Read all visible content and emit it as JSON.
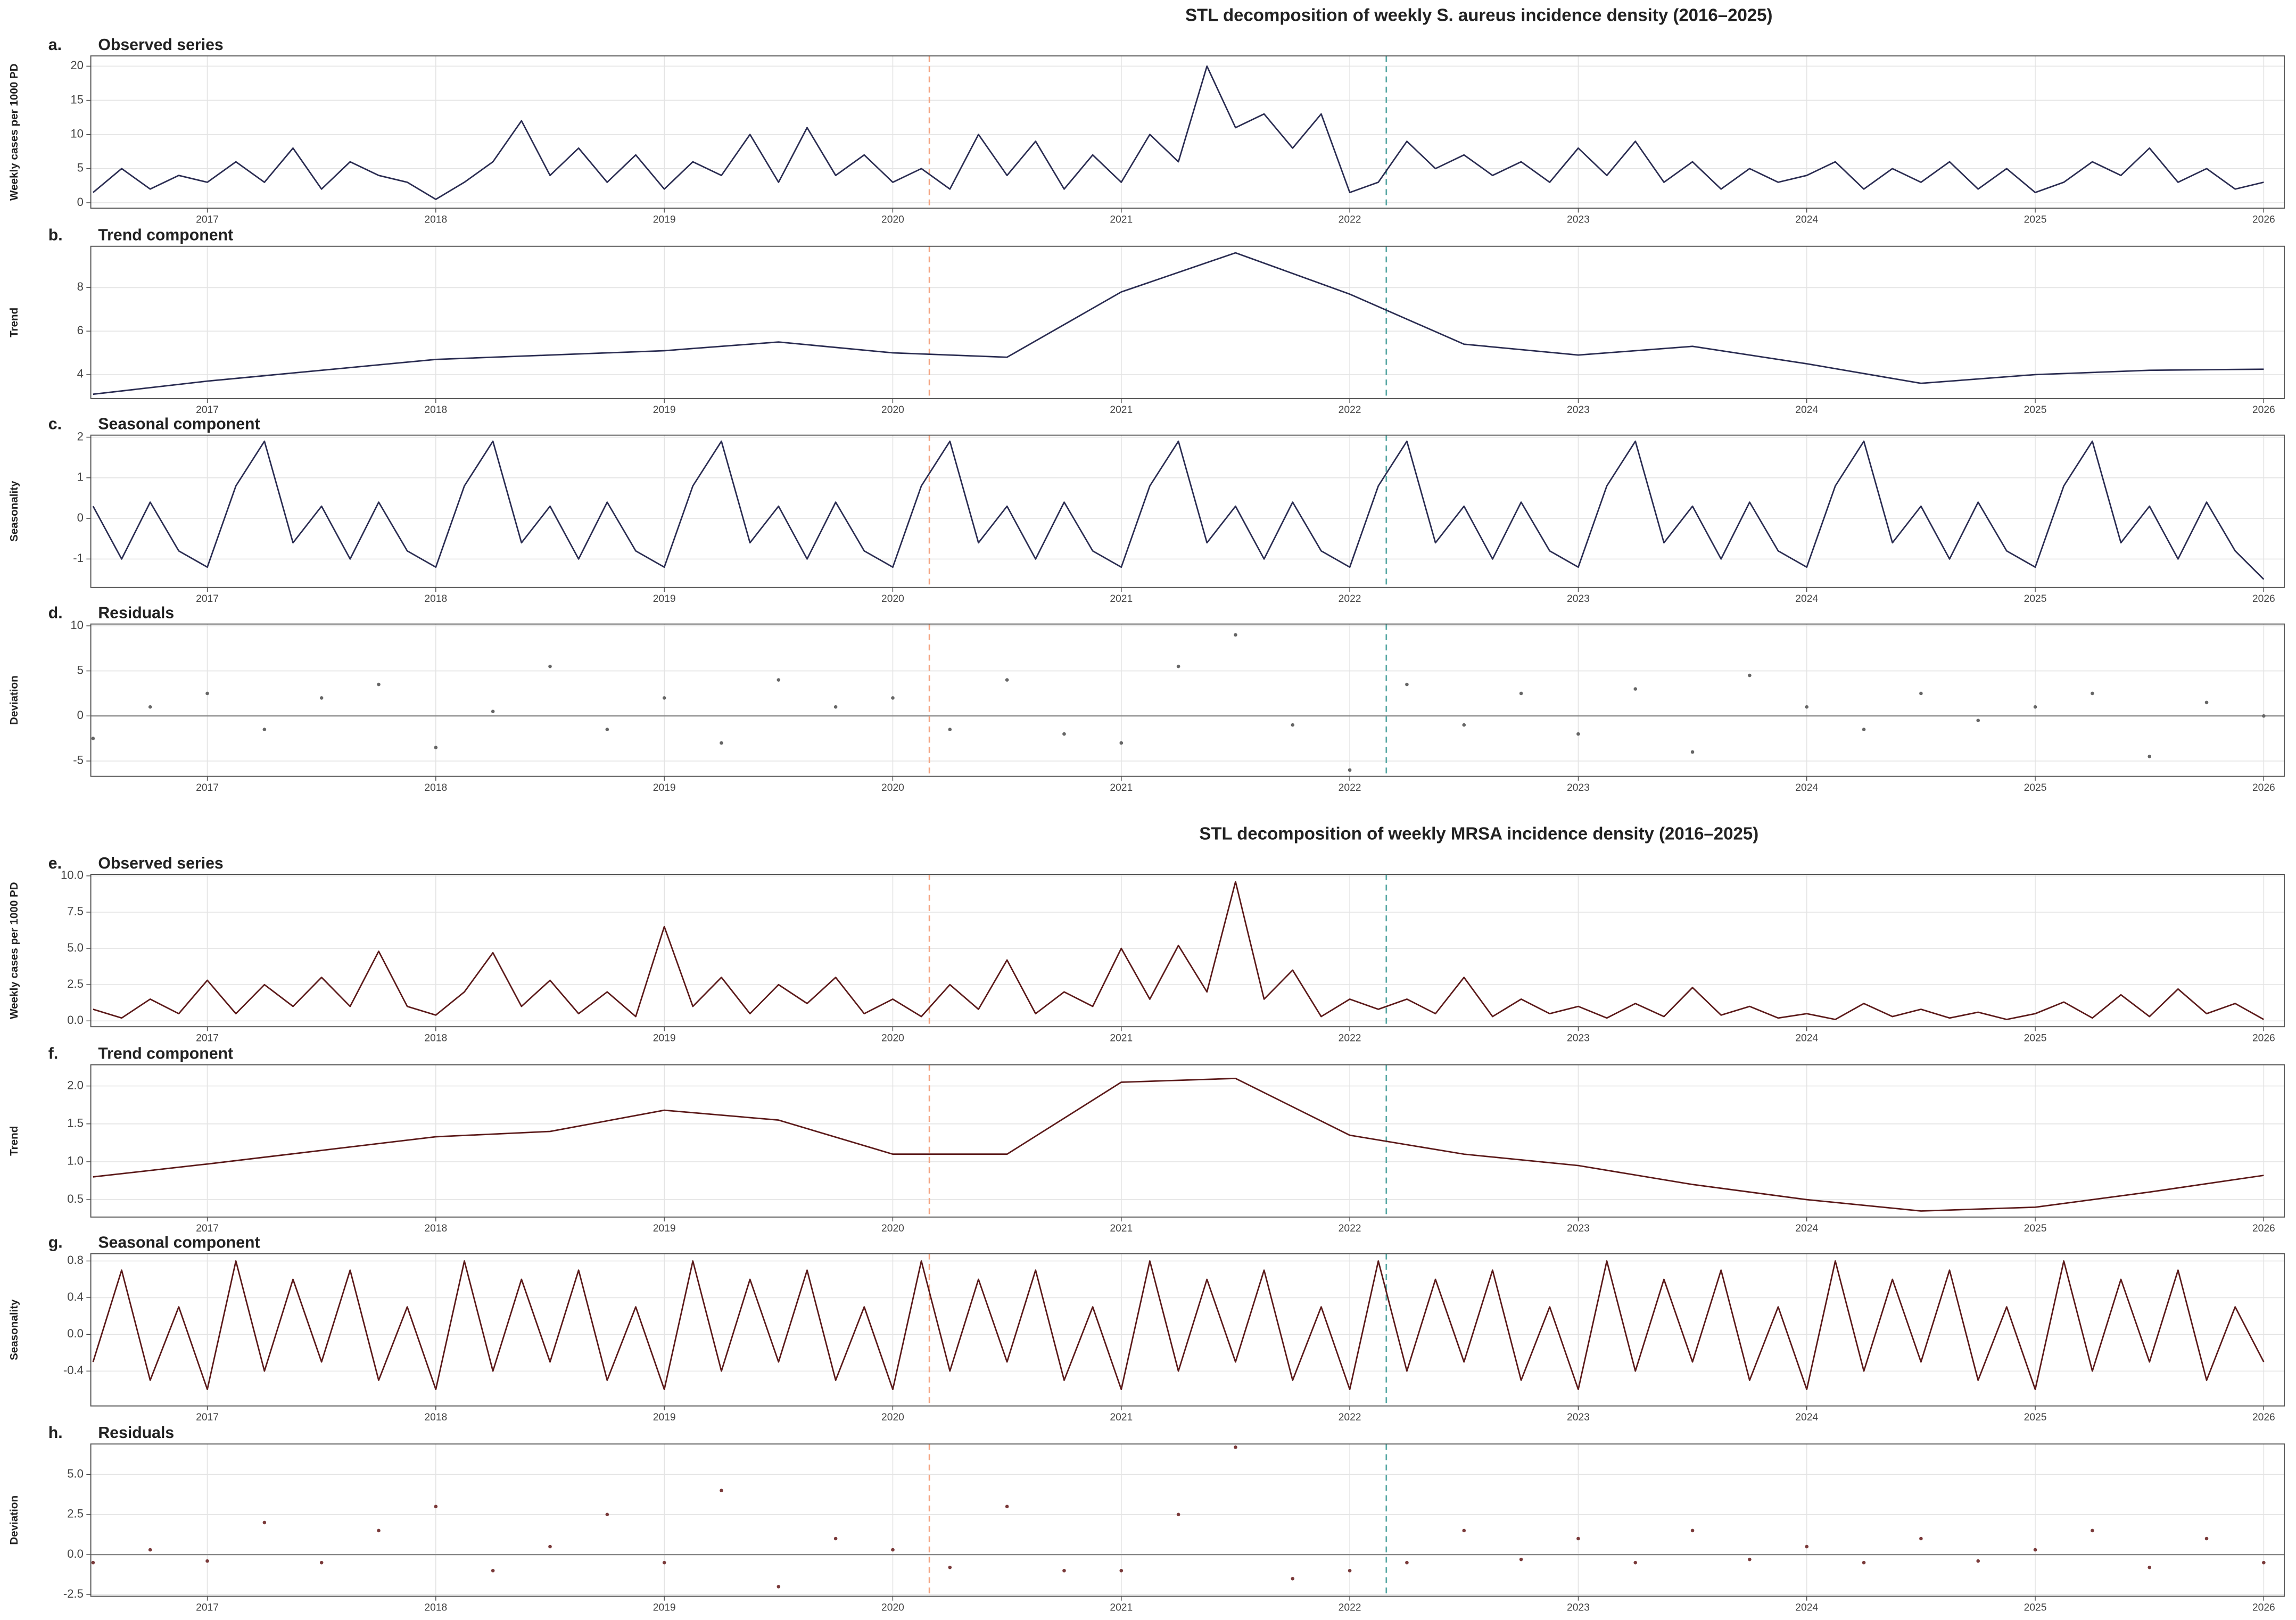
{
  "chart_data": [
    {
      "type": "line",
      "suptitle": "STL decomposition of weekly S. aureus incidence density (2016–2025)",
      "tag": "a.",
      "title": "Observed series",
      "ylabel": "Weekly cases per 1000 PD",
      "color": "#2b2d52",
      "grid": true,
      "xlim": [
        2016.49,
        2026.09
      ],
      "xticks": [
        2017,
        2018,
        2019,
        2020,
        2021,
        2022,
        2023,
        2024,
        2025,
        2026
      ],
      "ylim": [
        -0.8,
        21.5
      ],
      "yticks": [
        0,
        5,
        10,
        15,
        20
      ],
      "vlines": [
        {
          "x": 2020.16,
          "color": "#f4a582"
        },
        {
          "x": 2022.16,
          "color": "#5aa9a5"
        }
      ],
      "x": [
        2016.5,
        2016.625,
        2016.75,
        2016.875,
        2017,
        2017.125,
        2017.25,
        2017.375,
        2017.5,
        2017.625,
        2017.75,
        2017.875,
        2018,
        2018.125,
        2018.25,
        2018.375,
        2018.5,
        2018.625,
        2018.75,
        2018.875,
        2019,
        2019.125,
        2019.25,
        2019.375,
        2019.5,
        2019.625,
        2019.75,
        2019.875,
        2020,
        2020.125,
        2020.25,
        2020.375,
        2020.5,
        2020.625,
        2020.75,
        2020.875,
        2021,
        2021.125,
        2021.25,
        2021.375,
        2021.5,
        2021.625,
        2021.75,
        2021.875,
        2022,
        2022.125,
        2022.25,
        2022.375,
        2022.5,
        2022.625,
        2022.75,
        2022.875,
        2023,
        2023.125,
        2023.25,
        2023.375,
        2023.5,
        2023.625,
        2023.75,
        2023.875,
        2024,
        2024.125,
        2024.25,
        2024.375,
        2024.5,
        2024.625,
        2024.75,
        2024.875,
        2025,
        2025.125,
        2025.25,
        2025.375,
        2025.5,
        2025.625,
        2025.75,
        2025.875,
        2026
      ],
      "values": [
        1.5,
        5,
        2,
        4,
        3,
        6,
        3,
        8,
        2,
        6,
        4,
        3,
        0.5,
        3,
        6,
        12,
        4,
        8,
        3,
        7,
        2,
        6,
        4,
        10,
        3,
        11,
        4,
        7,
        3,
        5,
        2,
        10,
        4,
        9,
        2,
        7,
        3,
        10,
        6,
        20,
        11,
        13,
        8,
        13,
        1.5,
        3,
        9,
        5,
        7,
        4,
        6,
        3,
        8,
        4,
        9,
        3,
        6,
        2,
        5,
        3,
        4,
        6,
        2,
        5,
        3,
        6,
        2,
        5,
        1.5,
        3,
        6,
        4,
        8,
        3,
        5,
        2,
        3
      ]
    },
    {
      "type": "line",
      "tag": "b.",
      "title": "Trend component",
      "ylabel": "Trend",
      "color": "#2b2d52",
      "grid": true,
      "xlim": [
        2016.49,
        2026.09
      ],
      "xticks": [
        2017,
        2018,
        2019,
        2020,
        2021,
        2022,
        2023,
        2024,
        2025,
        2026
      ],
      "ylim": [
        2.9,
        9.9
      ],
      "yticks": [
        4,
        6,
        8
      ],
      "vlines": [
        {
          "x": 2020.16,
          "color": "#f4a582"
        },
        {
          "x": 2022.16,
          "color": "#5aa9a5"
        }
      ],
      "x": [
        2016.5,
        2017,
        2017.5,
        2018,
        2018.5,
        2019,
        2019.5,
        2020,
        2020.5,
        2021,
        2021.5,
        2022,
        2022.5,
        2023,
        2023.5,
        2024,
        2024.5,
        2025,
        2025.5,
        2026
      ],
      "values": [
        3.1,
        3.7,
        4.2,
        4.7,
        4.9,
        5.1,
        5.5,
        5.0,
        4.8,
        7.8,
        9.6,
        7.7,
        5.4,
        4.9,
        5.3,
        4.5,
        3.6,
        4.0,
        4.2,
        4.25
      ]
    },
    {
      "type": "line",
      "tag": "c.",
      "title": "Seasonal component",
      "ylabel": "Seasonality",
      "color": "#2b2d52",
      "grid": true,
      "xlim": [
        2016.49,
        2026.09
      ],
      "xticks": [
        2017,
        2018,
        2019,
        2020,
        2021,
        2022,
        2023,
        2024,
        2025,
        2026
      ],
      "ylim": [
        -1.7,
        2.05
      ],
      "yticks": [
        -1,
        0,
        1,
        2
      ],
      "vlines": [
        {
          "x": 2020.16,
          "color": "#f4a582"
        },
        {
          "x": 2022.16,
          "color": "#5aa9a5"
        }
      ],
      "x": [
        2016.5,
        2016.625,
        2016.75,
        2016.875,
        2017,
        2017.125,
        2017.25,
        2017.375,
        2017.5,
        2017.625,
        2017.75,
        2017.875,
        2018,
        2018.125,
        2018.25,
        2018.375,
        2018.5,
        2018.625,
        2018.75,
        2018.875,
        2019,
        2019.125,
        2019.25,
        2019.375,
        2019.5,
        2019.625,
        2019.75,
        2019.875,
        2020,
        2020.125,
        2020.25,
        2020.375,
        2020.5,
        2020.625,
        2020.75,
        2020.875,
        2021,
        2021.125,
        2021.25,
        2021.375,
        2021.5,
        2021.625,
        2021.75,
        2021.875,
        2022,
        2022.125,
        2022.25,
        2022.375,
        2022.5,
        2022.625,
        2022.75,
        2022.875,
        2023,
        2023.125,
        2023.25,
        2023.375,
        2023.5,
        2023.625,
        2023.75,
        2023.875,
        2024,
        2024.125,
        2024.25,
        2024.375,
        2024.5,
        2024.625,
        2024.75,
        2024.875,
        2025,
        2025.125,
        2025.25,
        2025.375,
        2025.5,
        2025.625,
        2025.75,
        2025.875,
        2026
      ],
      "values": [
        0.3,
        -1.0,
        0.4,
        -0.8,
        -1.2,
        0.8,
        1.9,
        -0.6,
        0.3,
        -1.0,
        0.4,
        -0.8,
        -1.2,
        0.8,
        1.9,
        -0.6,
        0.3,
        -1.0,
        0.4,
        -0.8,
        -1.2,
        0.8,
        1.9,
        -0.6,
        0.3,
        -1.0,
        0.4,
        -0.8,
        -1.2,
        0.8,
        1.9,
        -0.6,
        0.3,
        -1.0,
        0.4,
        -0.8,
        -1.2,
        0.8,
        1.9,
        -0.6,
        0.3,
        -1.0,
        0.4,
        -0.8,
        -1.2,
        0.8,
        1.9,
        -0.6,
        0.3,
        -1.0,
        0.4,
        -0.8,
        -1.2,
        0.8,
        1.9,
        -0.6,
        0.3,
        -1.0,
        0.4,
        -0.8,
        -1.2,
        0.8,
        1.9,
        -0.6,
        0.3,
        -1.0,
        0.4,
        -0.8,
        -1.2,
        0.8,
        1.9,
        -0.6,
        0.3,
        -1.0,
        0.4,
        -0.8,
        -1.5
      ]
    },
    {
      "type": "scatter",
      "tag": "d.",
      "title": "Residuals",
      "ylabel": "Deviation",
      "color": "#666666",
      "grid": true,
      "hline": 0,
      "xlim": [
        2016.49,
        2026.09
      ],
      "xticks": [
        2017,
        2018,
        2019,
        2020,
        2021,
        2022,
        2023,
        2024,
        2025,
        2026
      ],
      "ylim": [
        -6.7,
        10.2
      ],
      "yticks": [
        -5,
        0,
        5,
        10
      ],
      "vlines": [
        {
          "x": 2020.16,
          "color": "#f4a582"
        },
        {
          "x": 2022.16,
          "color": "#5aa9a5"
        }
      ],
      "x": [
        2016.5,
        2016.75,
        2017,
        2017.25,
        2017.5,
        2017.75,
        2018,
        2018.25,
        2018.5,
        2018.75,
        2019,
        2019.25,
        2019.5,
        2019.75,
        2020,
        2020.25,
        2020.5,
        2020.75,
        2021,
        2021.25,
        2021.5,
        2021.75,
        2022,
        2022.25,
        2022.5,
        2022.75,
        2023,
        2023.25,
        2023.5,
        2023.75,
        2024,
        2024.25,
        2024.5,
        2024.75,
        2025,
        2025.25,
        2025.5,
        2025.75,
        2026
      ],
      "values": [
        -2.5,
        1,
        2.5,
        -1.5,
        2,
        3.5,
        -3.5,
        0.5,
        5.5,
        -1.5,
        2,
        -3,
        4,
        1,
        2,
        -1.5,
        4,
        -2,
        -3,
        5.5,
        9,
        -1,
        -6,
        3.5,
        -1,
        2.5,
        -2,
        3,
        -4,
        4.5,
        1,
        -1.5,
        2.5,
        -0.5,
        1,
        2.5,
        -4.5,
        1.5,
        0
      ]
    },
    {
      "type": "line",
      "suptitle": "STL decomposition of weekly MRSA incidence density (2016–2025)",
      "tag": "e.",
      "title": "Observed series",
      "ylabel": "Weekly cases per 1000 PD",
      "color": "#5c1a1a",
      "grid": true,
      "xlim": [
        2016.49,
        2026.09
      ],
      "xticks": [
        2017,
        2018,
        2019,
        2020,
        2021,
        2022,
        2023,
        2024,
        2025,
        2026
      ],
      "ylim": [
        -0.4,
        10.1
      ],
      "yticks": [
        {
          "value": 0,
          "label": "0.0"
        },
        2.5,
        {
          "value": 5,
          "label": "5.0"
        },
        7.5,
        {
          "value": 10,
          "label": "10.0"
        }
      ],
      "vlines": [
        {
          "x": 2020.16,
          "color": "#f4a582"
        },
        {
          "x": 2022.16,
          "color": "#5aa9a5"
        }
      ],
      "x": [
        2016.5,
        2016.625,
        2016.75,
        2016.875,
        2017,
        2017.125,
        2017.25,
        2017.375,
        2017.5,
        2017.625,
        2017.75,
        2017.875,
        2018,
        2018.125,
        2018.25,
        2018.375,
        2018.5,
        2018.625,
        2018.75,
        2018.875,
        2019,
        2019.125,
        2019.25,
        2019.375,
        2019.5,
        2019.625,
        2019.75,
        2019.875,
        2020,
        2020.125,
        2020.25,
        2020.375,
        2020.5,
        2020.625,
        2020.75,
        2020.875,
        2021,
        2021.125,
        2021.25,
        2021.375,
        2021.5,
        2021.625,
        2021.75,
        2021.875,
        2022,
        2022.125,
        2022.25,
        2022.375,
        2022.5,
        2022.625,
        2022.75,
        2022.875,
        2023,
        2023.125,
        2023.25,
        2023.375,
        2023.5,
        2023.625,
        2023.75,
        2023.875,
        2024,
        2024.125,
        2024.25,
        2024.375,
        2024.5,
        2024.625,
        2024.75,
        2024.875,
        2025,
        2025.125,
        2025.25,
        2025.375,
        2025.5,
        2025.625,
        2025.75,
        2025.875,
        2026
      ],
      "values": [
        0.8,
        0.2,
        1.5,
        0.5,
        2.8,
        0.5,
        2.5,
        1,
        3,
        1,
        4.8,
        1.0,
        0.4,
        2,
        4.7,
        1,
        2.8,
        0.5,
        2,
        0.3,
        6.5,
        1,
        3,
        0.5,
        2.5,
        1.2,
        3,
        0.5,
        1.5,
        0.3,
        2.5,
        0.8,
        4.2,
        0.5,
        2,
        1,
        5,
        1.5,
        5.2,
        2,
        9.6,
        1.5,
        3.5,
        0.3,
        1.5,
        0.8,
        1.5,
        0.5,
        3,
        0.3,
        1.5,
        0.5,
        1.0,
        0.2,
        1.2,
        0.3,
        2.3,
        0.4,
        1,
        0.2,
        0.5,
        0.1,
        1.2,
        0.3,
        0.8,
        0.2,
        0.6,
        0.1,
        0.5,
        1.3,
        0.2,
        1.8,
        0.3,
        2.2,
        0.5,
        1.2,
        0.1
      ]
    },
    {
      "type": "line",
      "tag": "f.",
      "title": "Trend component",
      "ylabel": "Trend",
      "color": "#5c1a1a",
      "grid": true,
      "xlim": [
        2016.49,
        2026.09
      ],
      "xticks": [
        2017,
        2018,
        2019,
        2020,
        2021,
        2022,
        2023,
        2024,
        2025,
        2026
      ],
      "ylim": [
        0.27,
        2.28
      ],
      "yticks": [
        0.5,
        {
          "value": 1,
          "label": "1.0"
        },
        1.5,
        {
          "value": 2,
          "label": "2.0"
        }
      ],
      "vlines": [
        {
          "x": 2020.16,
          "color": "#f4a582"
        },
        {
          "x": 2022.16,
          "color": "#5aa9a5"
        }
      ],
      "x": [
        2016.5,
        2017,
        2017.5,
        2018,
        2018.5,
        2019,
        2019.5,
        2020,
        2020.5,
        2021,
        2021.5,
        2022,
        2022.5,
        2023,
        2023.5,
        2024,
        2024.5,
        2025,
        2025.5,
        2026
      ],
      "values": [
        0.8,
        0.97,
        1.15,
        1.33,
        1.4,
        1.68,
        1.55,
        1.1,
        1.1,
        2.05,
        2.1,
        1.35,
        1.1,
        0.95,
        0.7,
        0.5,
        0.35,
        0.4,
        0.6,
        0.82
      ]
    },
    {
      "type": "line",
      "tag": "g.",
      "title": "Seasonal component",
      "ylabel": "Seasonality",
      "color": "#5c1a1a",
      "grid": true,
      "xlim": [
        2016.49,
        2026.09
      ],
      "xticks": [
        2017,
        2018,
        2019,
        2020,
        2021,
        2022,
        2023,
        2024,
        2025,
        2026
      ],
      "ylim": [
        -0.78,
        0.88
      ],
      "yticks": [
        -0.4,
        {
          "value": 0,
          "label": "0.0"
        },
        0.4,
        0.8
      ],
      "vlines": [
        {
          "x": 2020.16,
          "color": "#f4a582"
        },
        {
          "x": 2022.16,
          "color": "#5aa9a5"
        }
      ],
      "x": [
        2016.5,
        2016.625,
        2016.75,
        2016.875,
        2017,
        2017.125,
        2017.25,
        2017.375,
        2017.5,
        2017.625,
        2017.75,
        2017.875,
        2018,
        2018.125,
        2018.25,
        2018.375,
        2018.5,
        2018.625,
        2018.75,
        2018.875,
        2019,
        2019.125,
        2019.25,
        2019.375,
        2019.5,
        2019.625,
        2019.75,
        2019.875,
        2020,
        2020.125,
        2020.25,
        2020.375,
        2020.5,
        2020.625,
        2020.75,
        2020.875,
        2021,
        2021.125,
        2021.25,
        2021.375,
        2021.5,
        2021.625,
        2021.75,
        2021.875,
        2022,
        2022.125,
        2022.25,
        2022.375,
        2022.5,
        2022.625,
        2022.75,
        2022.875,
        2023,
        2023.125,
        2023.25,
        2023.375,
        2023.5,
        2023.625,
        2023.75,
        2023.875,
        2024,
        2024.125,
        2024.25,
        2024.375,
        2024.5,
        2024.625,
        2024.75,
        2024.875,
        2025,
        2025.125,
        2025.25,
        2025.375,
        2025.5,
        2025.625,
        2025.75,
        2025.875,
        2026
      ],
      "values": [
        -0.3,
        0.7,
        -0.5,
        0.3,
        -0.6,
        0.8,
        -0.4,
        0.6,
        -0.3,
        0.7,
        -0.5,
        0.3,
        -0.6,
        0.8,
        -0.4,
        0.6,
        -0.3,
        0.7,
        -0.5,
        0.3,
        -0.6,
        0.8,
        -0.4,
        0.6,
        -0.3,
        0.7,
        -0.5,
        0.3,
        -0.6,
        0.8,
        -0.4,
        0.6,
        -0.3,
        0.7,
        -0.5,
        0.3,
        -0.6,
        0.8,
        -0.4,
        0.6,
        -0.3,
        0.7,
        -0.5,
        0.3,
        -0.6,
        0.8,
        -0.4,
        0.6,
        -0.3,
        0.7,
        -0.5,
        0.3,
        -0.6,
        0.8,
        -0.4,
        0.6,
        -0.3,
        0.7,
        -0.5,
        0.3,
        -0.6,
        0.8,
        -0.4,
        0.6,
        -0.3,
        0.7,
        -0.5,
        0.3,
        -0.6,
        0.8,
        -0.4,
        0.6,
        -0.3,
        0.7,
        -0.5,
        0.3,
        -0.3
      ]
    },
    {
      "type": "scatter",
      "tag": "h.",
      "title": "Residuals",
      "ylabel": "Deviation",
      "color": "#7a3a3a",
      "grid": true,
      "hline": 0,
      "xlim": [
        2016.49,
        2026.09
      ],
      "xticks": [
        2017,
        2018,
        2019,
        2020,
        2021,
        2022,
        2023,
        2024,
        2025,
        2026
      ],
      "ylim": [
        -2.6,
        6.9
      ],
      "yticks": [
        -2.5,
        {
          "value": 0,
          "label": "0.0"
        },
        2.5,
        {
          "value": 5,
          "label": "5.0"
        }
      ],
      "vlines": [
        {
          "x": 2020.16,
          "color": "#f4a582"
        },
        {
          "x": 2022.16,
          "color": "#5aa9a5"
        }
      ],
      "x": [
        2016.5,
        2016.75,
        2017,
        2017.25,
        2017.5,
        2017.75,
        2018,
        2018.25,
        2018.5,
        2018.75,
        2019,
        2019.25,
        2019.5,
        2019.75,
        2020,
        2020.25,
        2020.5,
        2020.75,
        2021,
        2021.25,
        2021.5,
        2021.75,
        2022,
        2022.25,
        2022.5,
        2022.75,
        2023,
        2023.25,
        2023.5,
        2023.75,
        2024,
        2024.25,
        2024.5,
        2024.75,
        2025,
        2025.25,
        2025.5,
        2025.75,
        2026
      ],
      "values": [
        -0.5,
        0.3,
        -0.4,
        2,
        -0.5,
        1.5,
        3,
        -1,
        0.5,
        2.5,
        -0.5,
        4,
        -2,
        1,
        0.3,
        -0.8,
        3,
        -1,
        -1,
        2.5,
        6.7,
        -1.5,
        -1,
        -0.5,
        1.5,
        -0.3,
        1,
        -0.5,
        1.5,
        -0.3,
        0.5,
        -0.5,
        1,
        -0.4,
        0.3,
        1.5,
        -0.8,
        1,
        -0.5
      ]
    }
  ]
}
